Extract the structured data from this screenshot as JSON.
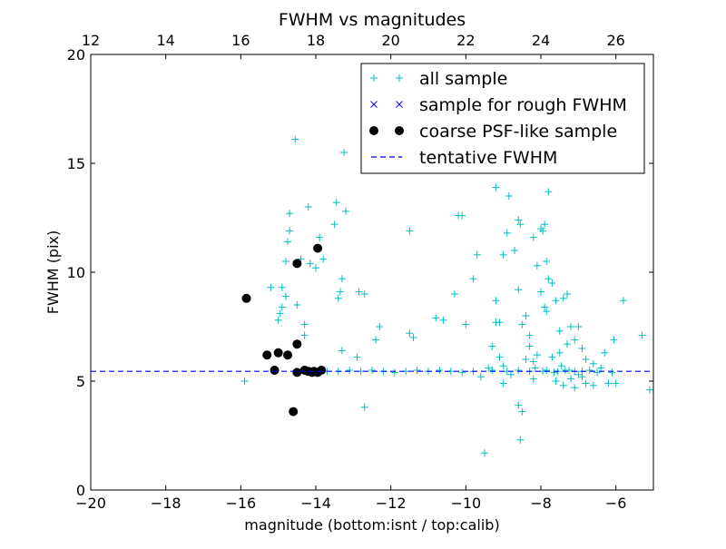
{
  "chart_data": {
    "type": "scatter",
    "title": "FWHM vs magnitudes",
    "xlabel": "magnitude (bottom:isnt / top:calib)",
    "ylabel": "FWHM (pix)",
    "xlim": [
      -20,
      -5
    ],
    "ylim": [
      0,
      20
    ],
    "top_xlim": [
      12,
      27
    ],
    "x_ticks": [
      -20,
      -18,
      -16,
      -14,
      -12,
      -10,
      -8,
      -6
    ],
    "x_tick_labels": [
      "−20",
      "−18",
      "−16",
      "−14",
      "−12",
      "−10",
      "−8",
      "−6"
    ],
    "top_x_ticks": [
      12,
      14,
      16,
      18,
      20,
      22,
      24,
      26
    ],
    "top_x_tick_labels": [
      "12",
      "14",
      "16",
      "18",
      "20",
      "22",
      "24",
      "26"
    ],
    "y_ticks": [
      0,
      5,
      10,
      15,
      20
    ],
    "y_tick_labels": [
      "0",
      "5",
      "10",
      "15",
      "20"
    ],
    "grid": false,
    "legend_position": "top-right",
    "series": [
      {
        "name": "all sample",
        "marker": "plus",
        "color": "#00bfbf",
        "points": [
          [
            -15.9,
            5.0
          ],
          [
            -15.2,
            9.3
          ],
          [
            -15.0,
            7.8
          ],
          [
            -14.95,
            8.1
          ],
          [
            -14.9,
            8.4
          ],
          [
            -14.9,
            9.3
          ],
          [
            -14.8,
            8.9
          ],
          [
            -14.8,
            10.5
          ],
          [
            -14.75,
            11.4
          ],
          [
            -14.7,
            11.9
          ],
          [
            -14.7,
            12.7
          ],
          [
            -14.55,
            16.1
          ],
          [
            -14.5,
            8.5
          ],
          [
            -14.4,
            10.6
          ],
          [
            -14.3,
            7.6
          ],
          [
            -14.3,
            7.1
          ],
          [
            -14.2,
            13.0
          ],
          [
            -14.15,
            10.4
          ],
          [
            -14.0,
            10.2
          ],
          [
            -13.9,
            11.6
          ],
          [
            -13.8,
            10.6
          ],
          [
            -13.5,
            12.2
          ],
          [
            -13.45,
            13.2
          ],
          [
            -13.4,
            8.8
          ],
          [
            -13.35,
            9.1
          ],
          [
            -13.3,
            9.7
          ],
          [
            -13.25,
            15.5
          ],
          [
            -13.2,
            12.8
          ],
          [
            -13.3,
            6.4
          ],
          [
            -12.9,
            6.1
          ],
          [
            -12.85,
            9.1
          ],
          [
            -12.7,
            9.0
          ],
          [
            -12.7,
            3.8
          ],
          [
            -12.4,
            6.9
          ],
          [
            -12.3,
            7.5
          ],
          [
            -11.5,
            11.9
          ],
          [
            -11.5,
            7.2
          ],
          [
            -11.4,
            7.0
          ],
          [
            -10.8,
            7.9
          ],
          [
            -10.6,
            7.8
          ],
          [
            -10.3,
            9.0
          ],
          [
            -10.2,
            12.6
          ],
          [
            -10.1,
            12.6
          ],
          [
            -10.0,
            7.6
          ],
          [
            -9.8,
            9.7
          ],
          [
            -9.7,
            10.8
          ],
          [
            -9.5,
            1.7
          ],
          [
            -9.3,
            6.6
          ],
          [
            -9.2,
            13.9
          ],
          [
            -9.2,
            8.7
          ],
          [
            -9.2,
            7.7
          ],
          [
            -9.1,
            7.7
          ],
          [
            -9.1,
            6.1
          ],
          [
            -9.0,
            10.8
          ],
          [
            -9.0,
            4.9
          ],
          [
            -8.9,
            11.8
          ],
          [
            -8.85,
            13.5
          ],
          [
            -8.7,
            11.0
          ],
          [
            -8.6,
            12.4
          ],
          [
            -8.55,
            12.2
          ],
          [
            -8.6,
            9.2
          ],
          [
            -8.5,
            7.6
          ],
          [
            -8.4,
            8.0
          ],
          [
            -8.3,
            7.1
          ],
          [
            -8.2,
            11.6
          ],
          [
            -8.1,
            10.3
          ],
          [
            -8.0,
            12.0
          ],
          [
            -7.95,
            11.9
          ],
          [
            -7.9,
            12.2
          ],
          [
            -7.85,
            10.5
          ],
          [
            -7.8,
            13.7
          ],
          [
            -7.8,
            9.7
          ],
          [
            -7.7,
            9.5
          ],
          [
            -7.6,
            8.7
          ],
          [
            -7.5,
            7.3
          ],
          [
            -7.4,
            8.8
          ],
          [
            -7.3,
            9.0
          ],
          [
            -7.2,
            7.5
          ],
          [
            -7.1,
            6.9
          ],
          [
            -7.0,
            7.5
          ],
          [
            -6.9,
            6.5
          ],
          [
            -6.8,
            6.0
          ],
          [
            -6.6,
            5.8
          ],
          [
            -6.3,
            6.3
          ],
          [
            -6.2,
            4.9
          ],
          [
            -6.05,
            6.9
          ],
          [
            -5.8,
            8.7
          ],
          [
            -5.3,
            7.1
          ],
          [
            -5.1,
            4.6
          ],
          [
            -8.6,
            3.9
          ],
          [
            -8.55,
            2.3
          ],
          [
            -8.5,
            3.6
          ],
          [
            -8.4,
            6.0
          ],
          [
            -8.3,
            6.6
          ],
          [
            -8.2,
            5.9
          ],
          [
            -8.1,
            6.2
          ],
          [
            -8.0,
            9.1
          ],
          [
            -7.9,
            8.4
          ],
          [
            -7.85,
            8.2
          ],
          [
            -7.7,
            6.1
          ],
          [
            -7.6,
            5.0
          ],
          [
            -7.5,
            6.3
          ],
          [
            -7.45,
            5.7
          ],
          [
            -7.4,
            4.8
          ],
          [
            -7.3,
            6.7
          ],
          [
            -7.2,
            5.1
          ],
          [
            -7.1,
            4.7
          ],
          [
            -7.0,
            5.3
          ],
          [
            -6.9,
            5.2
          ],
          [
            -6.8,
            4.9
          ],
          [
            -6.6,
            4.8
          ],
          [
            -6.4,
            5.6
          ],
          [
            -6.0,
            4.9
          ],
          [
            -9.6,
            5.2
          ],
          [
            -9.4,
            5.6
          ],
          [
            -9.0,
            5.7
          ],
          [
            -8.8,
            5.3
          ],
          [
            -8.2,
            5.1
          ],
          [
            -8.15,
            5.6
          ],
          [
            -7.85,
            5.5
          ],
          [
            -7.65,
            5.4
          ],
          [
            -7.25,
            5.5
          ],
          [
            -7.1,
            5.45
          ],
          [
            -6.9,
            5.45
          ],
          [
            -6.7,
            5.5
          ],
          [
            -6.5,
            5.4
          ],
          [
            -6.1,
            5.4
          ],
          [
            -13.7,
            5.45
          ],
          [
            -13.4,
            5.45
          ],
          [
            -13.1,
            5.5
          ],
          [
            -12.8,
            5.45
          ],
          [
            -12.5,
            5.5
          ],
          [
            -12.2,
            5.45
          ],
          [
            -11.9,
            5.4
          ],
          [
            -11.6,
            5.45
          ],
          [
            -11.3,
            5.5
          ],
          [
            -11.0,
            5.45
          ],
          [
            -10.7,
            5.5
          ],
          [
            -10.4,
            5.45
          ],
          [
            -10.1,
            5.4
          ],
          [
            -9.8,
            5.45
          ],
          [
            -9.3,
            5.5
          ],
          [
            -8.9,
            5.45
          ],
          [
            -8.6,
            5.5
          ],
          [
            -8.3,
            5.45
          ],
          [
            -7.95,
            5.45
          ],
          [
            -7.55,
            5.45
          ],
          [
            -7.35,
            5.5
          ]
        ]
      },
      {
        "name": "sample for rough FWHM",
        "marker": "x",
        "color": "#0000ff",
        "points": []
      },
      {
        "name": "coarse PSF-like sample",
        "marker": "circle",
        "color": "#000000",
        "points": [
          [
            -15.85,
            8.8
          ],
          [
            -15.3,
            6.2
          ],
          [
            -15.1,
            5.5
          ],
          [
            -15.0,
            6.3
          ],
          [
            -14.75,
            6.2
          ],
          [
            -14.6,
            3.6
          ],
          [
            -14.5,
            10.4
          ],
          [
            -14.5,
            6.7
          ],
          [
            -14.5,
            5.4
          ],
          [
            -14.3,
            5.5
          ],
          [
            -14.2,
            5.45
          ],
          [
            -14.1,
            5.4
          ],
          [
            -14.05,
            5.45
          ],
          [
            -13.95,
            11.1
          ],
          [
            -13.95,
            5.4
          ],
          [
            -13.85,
            5.5
          ]
        ]
      },
      {
        "name": "tentative FWHM",
        "type": "hline",
        "style": "dashed",
        "color": "#0000ff",
        "y": 5.45
      }
    ]
  }
}
